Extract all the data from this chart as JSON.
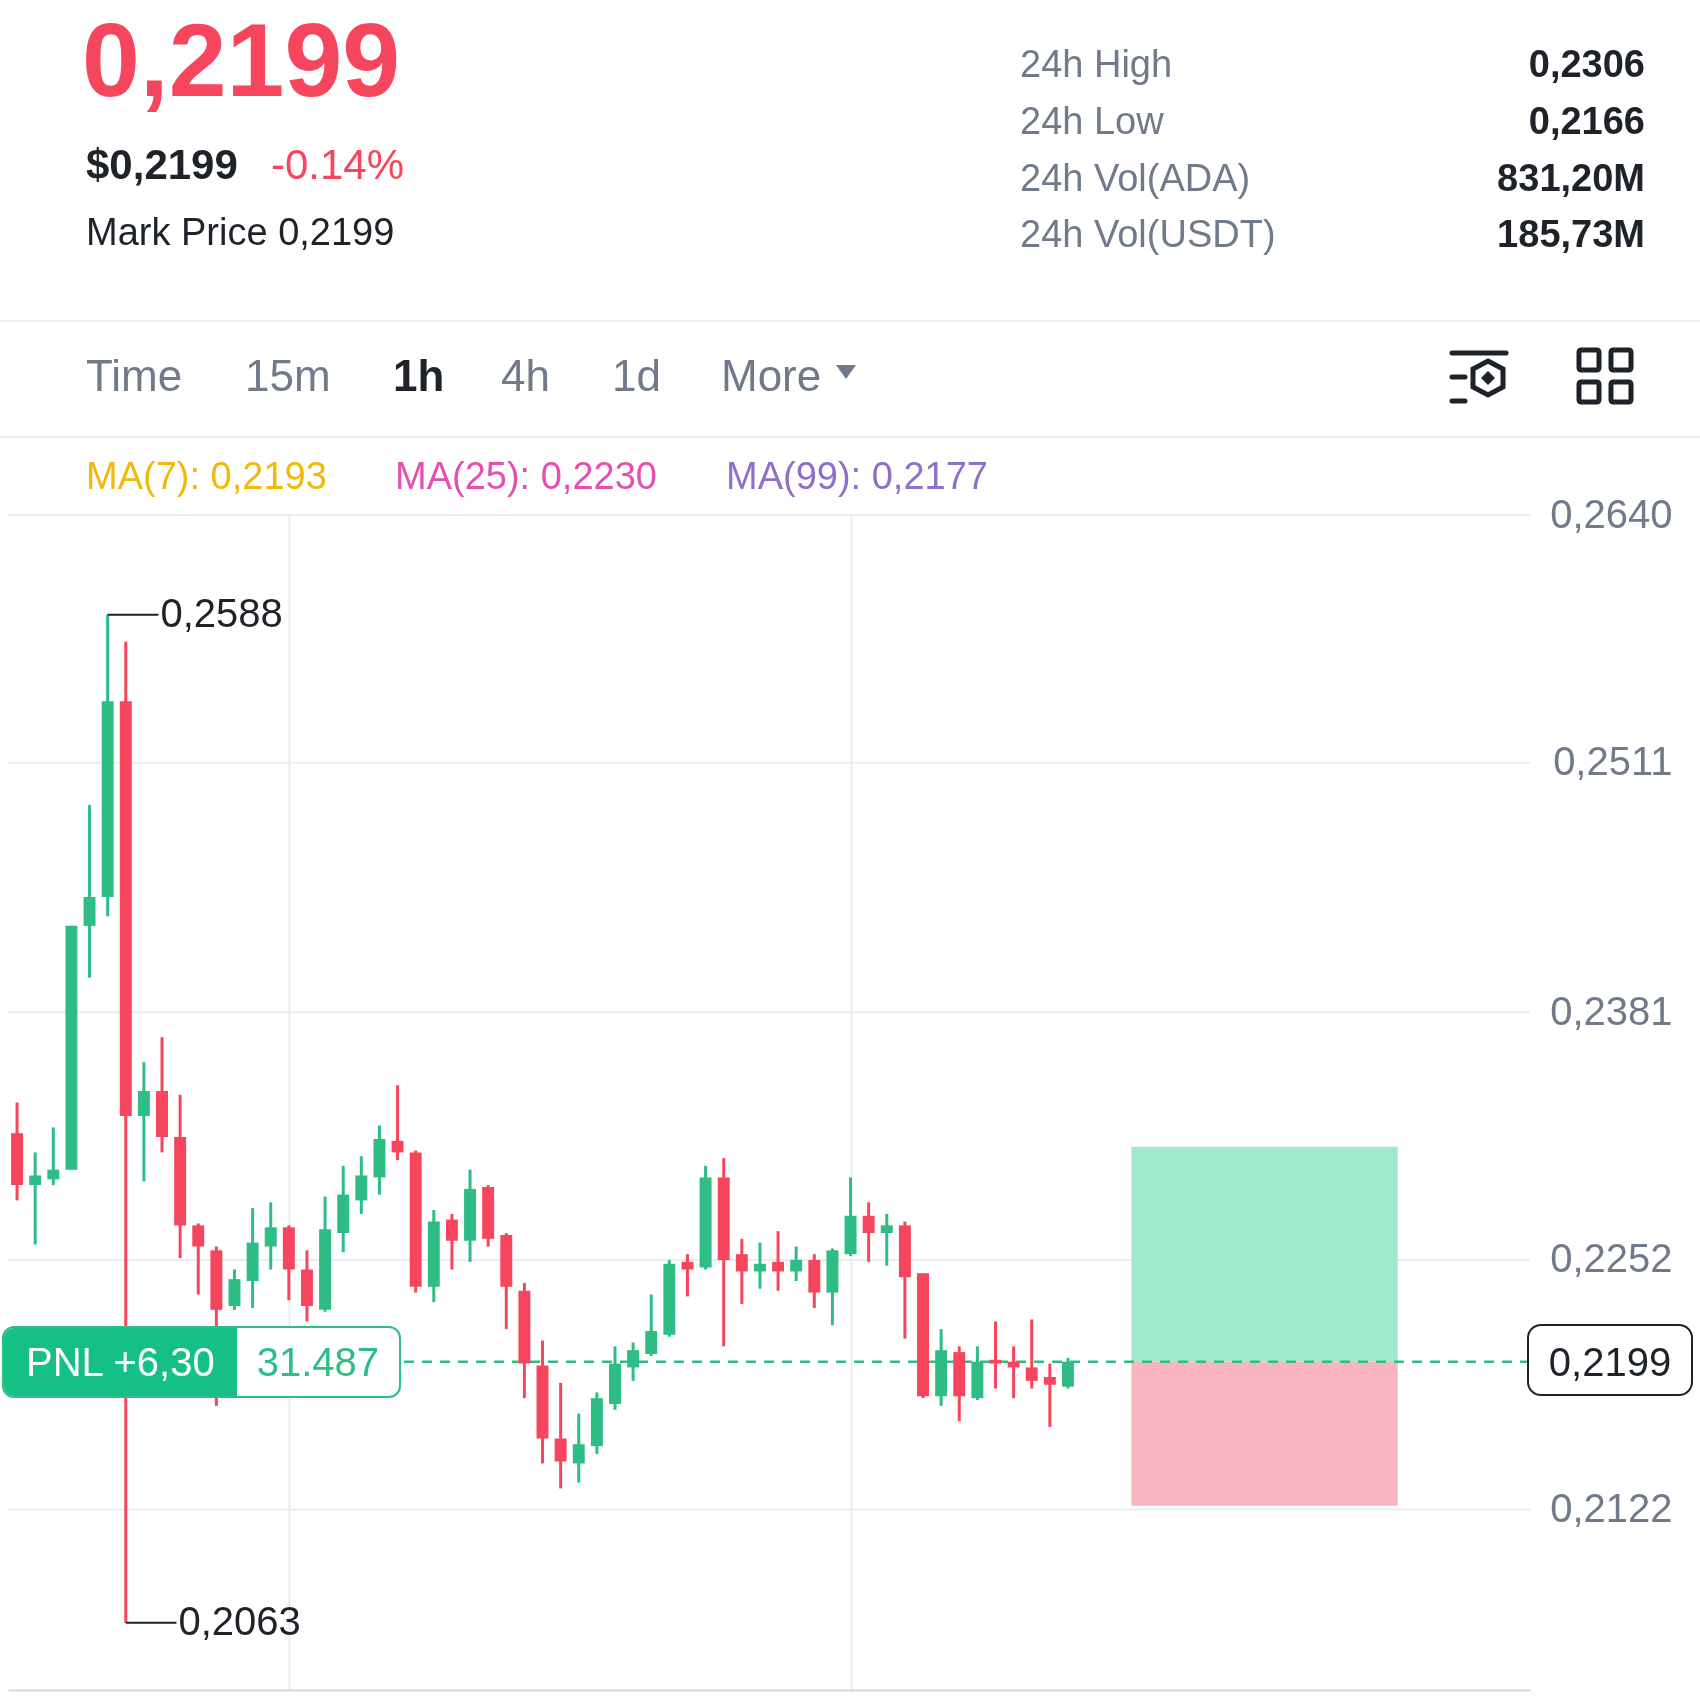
{
  "chart_data": {
    "type": "candlestick",
    "title": "0,2199",
    "subtitle": "$0,2199",
    "categories": [
      null,
      null,
      null,
      null,
      null,
      null,
      null,
      null,
      null,
      null,
      null,
      null,
      null,
      null,
      null,
      null,
      null,
      null,
      null,
      null,
      null,
      null,
      null,
      null,
      null,
      null,
      null,
      null,
      null,
      null,
      null,
      null,
      null,
      null,
      null,
      null,
      null,
      null,
      null,
      null,
      null,
      null,
      null,
      null,
      null,
      null,
      null,
      null,
      null,
      null,
      null,
      null,
      null,
      null,
      null,
      null,
      null,
      null,
      null,
      null,
      null,
      null,
      null,
      null,
      null,
      null,
      null,
      null,
      null,
      null,
      null,
      null,
      null,
      null,
      null,
      null,
      null,
      null,
      null,
      null,
      null,
      null,
      null,
      null
    ],
    "ohlc": [
      [
        0.2318,
        0.2334,
        0.2283,
        0.2291
      ],
      [
        0.2291,
        0.2308,
        0.226,
        0.2296
      ],
      [
        0.2294,
        0.2321,
        0.2291,
        0.2299
      ],
      [
        0.2299,
        0.2426,
        0.2299,
        0.2426
      ],
      [
        0.2426,
        0.2489,
        0.2399,
        0.2441
      ],
      [
        0.2441,
        0.2588,
        0.2431,
        0.2543
      ],
      [
        0.2543,
        0.2574,
        0.2063,
        0.2327
      ],
      [
        0.2327,
        0.2355,
        0.2293,
        0.234
      ],
      [
        0.234,
        0.2368,
        0.2308,
        0.2316
      ],
      [
        0.2316,
        0.2338,
        0.2253,
        0.227
      ],
      [
        0.227,
        0.2271,
        0.2234,
        0.2259
      ],
      [
        0.2257,
        0.2259,
        0.2176,
        0.2226
      ],
      [
        0.2228,
        0.2247,
        0.2226,
        0.2242
      ],
      [
        0.2241,
        0.2279,
        0.2227,
        0.2261
      ],
      [
        0.2259,
        0.2282,
        0.2247,
        0.2269
      ],
      [
        0.2269,
        0.227,
        0.2231,
        0.2247
      ],
      [
        0.2247,
        0.2257,
        0.222,
        0.2228
      ],
      [
        0.2226,
        0.2285,
        0.2225,
        0.2268
      ],
      [
        0.2266,
        0.2301,
        0.2256,
        0.2286
      ],
      [
        0.2283,
        0.2306,
        0.2276,
        0.2296
      ],
      [
        0.2295,
        0.2322,
        0.2286,
        0.2315
      ],
      [
        0.2314,
        0.2343,
        0.2304,
        0.2308
      ],
      [
        0.2308,
        0.2309,
        0.2235,
        0.2238
      ],
      [
        0.2238,
        0.2278,
        0.223,
        0.2272
      ],
      [
        0.2273,
        0.2276,
        0.2247,
        0.2262
      ],
      [
        0.2262,
        0.2299,
        0.2251,
        0.2289
      ],
      [
        0.229,
        0.2291,
        0.2259,
        0.2263
      ],
      [
        0.2265,
        0.2266,
        0.2216,
        0.2238
      ],
      [
        0.2236,
        0.224,
        0.218,
        0.2198
      ],
      [
        0.2197,
        0.221,
        0.2146,
        0.2159
      ],
      [
        0.2159,
        0.2188,
        0.2133,
        0.2147
      ],
      [
        0.2146,
        0.2172,
        0.2136,
        0.2156
      ],
      [
        0.2155,
        0.2183,
        0.2151,
        0.218
      ],
      [
        0.2177,
        0.2207,
        0.2174,
        0.2198
      ],
      [
        0.2196,
        0.2209,
        0.2189,
        0.2205
      ],
      [
        0.2203,
        0.2234,
        0.2202,
        0.2215
      ],
      [
        0.2213,
        0.2252,
        0.2212,
        0.225
      ],
      [
        0.2251,
        0.2255,
        0.2233,
        0.2247
      ],
      [
        0.2248,
        0.2301,
        0.2247,
        0.2295
      ],
      [
        0.2295,
        0.2305,
        0.2207,
        0.2252
      ],
      [
        0.2255,
        0.2263,
        0.2229,
        0.2246
      ],
      [
        0.2246,
        0.2261,
        0.2237,
        0.225
      ],
      [
        0.2251,
        0.2267,
        0.2236,
        0.2246
      ],
      [
        0.2246,
        0.2259,
        0.2241,
        0.2252
      ],
      [
        0.2252,
        0.2255,
        0.2227,
        0.2235
      ],
      [
        0.2235,
        0.2258,
        0.2218,
        0.2257
      ],
      [
        0.2255,
        0.2295,
        0.2254,
        0.2275
      ],
      [
        0.2275,
        0.2282,
        0.2251,
        0.2266
      ],
      [
        0.2266,
        0.2276,
        0.2249,
        0.227
      ],
      [
        0.227,
        0.2272,
        0.2211,
        0.2243
      ],
      [
        0.2245,
        0.2245,
        0.218,
        0.2181
      ],
      [
        0.2181,
        0.2216,
        0.2176,
        0.2205
      ],
      [
        0.2204,
        0.2207,
        0.2168,
        0.2181
      ],
      [
        0.218,
        0.2207,
        0.2179,
        0.2199
      ],
      [
        0.22,
        0.222,
        0.2185,
        0.2198
      ],
      [
        0.2199,
        0.2207,
        0.218,
        0.2196
      ],
      [
        0.2196,
        0.2221,
        0.2185,
        0.2189
      ],
      [
        0.2191,
        0.2198,
        0.2165,
        0.2187
      ],
      [
        0.2186,
        0.2201,
        0.2185,
        0.2199
      ],
      null,
      null,
      null,
      null,
      null,
      null,
      null,
      null,
      null,
      null,
      null,
      null,
      null,
      null,
      null,
      null,
      null,
      null,
      null,
      null,
      null,
      null,
      null,
      null,
      null
    ],
    "ylim": [
      0.2028,
      0.264
    ],
    "yticks": [
      {
        "value": 0.264,
        "label": "0,2640"
      },
      {
        "value": 0.2511,
        "label": "0,2511"
      },
      {
        "value": 0.2381,
        "label": "0,2381"
      },
      {
        "value": 0.2252,
        "label": "0,2252"
      },
      {
        "value": 0.2122,
        "label": "0,2122"
      }
    ],
    "grid": true,
    "tick_labels": "y",
    "ref_lines": [
      {
        "axis": "y",
        "value": 0.2199,
        "label": "0,2199",
        "color": "#2ebd85",
        "line_style": "dashed"
      }
    ],
    "bands": [
      {
        "axis": "y",
        "from": 0.2199,
        "to": 0.2311,
        "color": "#a0eacb"
      },
      {
        "axis": "y",
        "from": 0.2124,
        "to": 0.2199,
        "color": "#f9b5bf"
      }
    ],
    "annotations": [
      "-0.14%",
      "Mark Price 0,2199",
      "24h High",
      "0,2306",
      "24h Low",
      "0,2166",
      "24h Vol(ADA)",
      "831,20M",
      "24h Vol(USDT)",
      "185,73M",
      "Time",
      "15m",
      "1h",
      "4h",
      "1d",
      "More",
      "MA(7): 0,2193",
      "MA(25): 0,2230",
      "MA(99): 0,2177",
      "PNL +6,30",
      "31.487",
      "0,2588",
      "0,2063"
    ]
  }
}
